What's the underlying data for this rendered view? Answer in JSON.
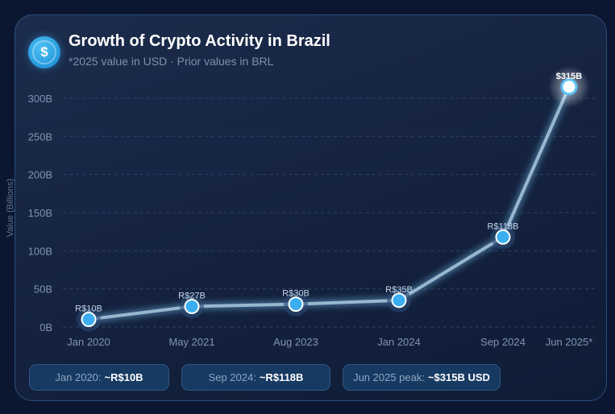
{
  "header": {
    "icon": "dollar-icon",
    "title": "Growth of Crypto Activity in Brazil",
    "subtitle": "*2025 value in USD · Prior values in BRL"
  },
  "chart_data": {
    "type": "line",
    "categories": [
      "Jan 2020",
      "May 2021",
      "Aug 2023",
      "Jan 2024",
      "Sep 2024",
      "Jun 2025*"
    ],
    "values": [
      10,
      27,
      30,
      35,
      118,
      315
    ],
    "data_labels": [
      "R$10B",
      "R$27B",
      "R$30B",
      "R$35B",
      "R$118B",
      "$315B"
    ],
    "ylabel": "Value (Billions)",
    "ylim": [
      0,
      300
    ],
    "yticks": [
      0,
      50,
      100,
      150,
      200,
      250,
      300
    ],
    "ytick_labels": [
      "0B",
      "50B",
      "100B",
      "150B",
      "200B",
      "250B",
      "300B"
    ],
    "grid": true,
    "colors": {
      "line": "#b9d6ea",
      "point": "#3aaef0",
      "peak_point": "#ffffff"
    }
  },
  "highlights": [
    {
      "label": "Jan 2020:",
      "value": "~R$10B"
    },
    {
      "label": "Sep 2024:",
      "value": "~R$118B"
    },
    {
      "label": "Jun 2025 peak:",
      "value": "~$315B USD"
    }
  ]
}
